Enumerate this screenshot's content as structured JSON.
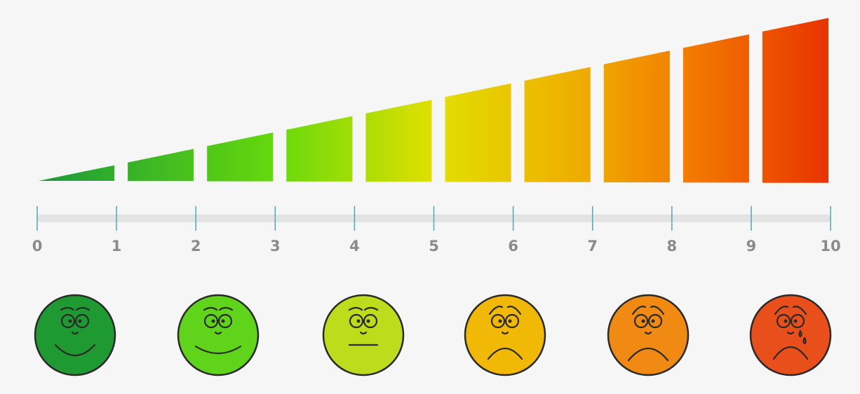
{
  "scale": {
    "labels": [
      "0",
      "1",
      "2",
      "3",
      "4",
      "5",
      "6",
      "7",
      "8",
      "9",
      "10"
    ]
  }
}
